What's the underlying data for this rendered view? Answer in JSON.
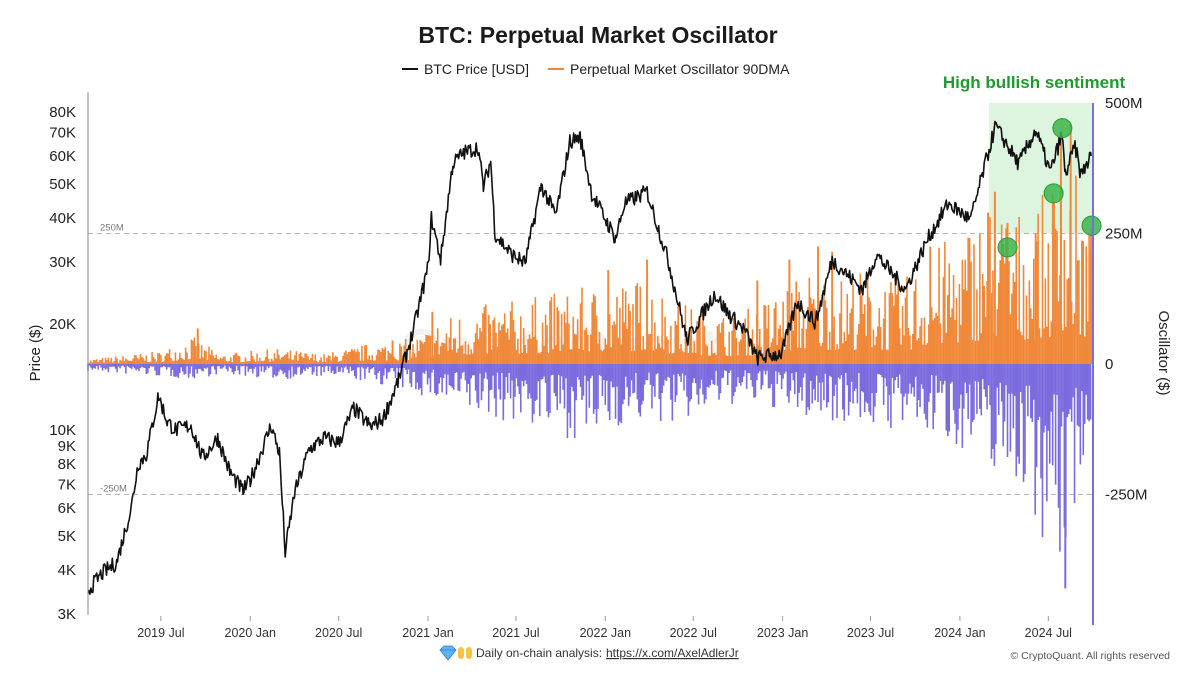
{
  "chart_data": {
    "type": "line",
    "title": "BTC: Perpetual Market Oscillator",
    "legend": [
      {
        "name": "BTC Price [USD]",
        "color": "#111111"
      },
      {
        "name": "Perpetual Market Oscillator 90DMA",
        "color": "#f0883a"
      }
    ],
    "legend_position": "top-center",
    "ylabel_left": "Price ($)",
    "ylabel_right": "Oscillator ($)",
    "y_left_scale": "log",
    "y_left_range": [
      3000,
      90000
    ],
    "y_left_ticks": [
      {
        "v": 80000,
        "label": "80K"
      },
      {
        "v": 70000,
        "label": "70K"
      },
      {
        "v": 60000,
        "label": "60K"
      },
      {
        "v": 50000,
        "label": "50K"
      },
      {
        "v": 40000,
        "label": "40K"
      },
      {
        "v": 30000,
        "label": "30K"
      },
      {
        "v": 20000,
        "label": "20K"
      },
      {
        "v": 10000,
        "label": "10K"
      },
      {
        "v": 9000,
        "label": "9K"
      },
      {
        "v": 8000,
        "label": "8K"
      },
      {
        "v": 7000,
        "label": "7K"
      },
      {
        "v": 6000,
        "label": "6K"
      },
      {
        "v": 5000,
        "label": "5K"
      },
      {
        "v": 4000,
        "label": "4K"
      },
      {
        "v": 3000,
        "label": "3K"
      }
    ],
    "y_right_range": [
      -500,
      500
    ],
    "y_right_unit": "M",
    "y_right_ticks": [
      {
        "v": 500,
        "label": "500M"
      },
      {
        "v": 250,
        "label": "250M"
      },
      {
        "v": 0,
        "label": "0"
      },
      {
        "v": -250,
        "label": "-250M"
      }
    ],
    "reference_lines": [
      {
        "v": 250,
        "label": "250M"
      },
      {
        "v": -250,
        "label": "-250M"
      }
    ],
    "x_range": [
      "2019-02-01",
      "2024-10-01"
    ],
    "x_ticks": [
      {
        "date": "2019-07-01",
        "label": "2019 Jul"
      },
      {
        "date": "2020-01-01",
        "label": "2020 Jan"
      },
      {
        "date": "2020-07-01",
        "label": "2020 Jul"
      },
      {
        "date": "2021-01-01",
        "label": "2021 Jan"
      },
      {
        "date": "2021-07-01",
        "label": "2021 Jul"
      },
      {
        "date": "2022-01-01",
        "label": "2022 Jan"
      },
      {
        "date": "2022-07-01",
        "label": "2022 Jul"
      },
      {
        "date": "2023-01-01",
        "label": "2023 Jan"
      },
      {
        "date": "2023-07-01",
        "label": "2023 Jul"
      },
      {
        "date": "2024-01-01",
        "label": "2024 Jan"
      },
      {
        "date": "2024-07-01",
        "label": "2024 Jul"
      }
    ],
    "grid": false,
    "btc_price": [
      [
        "2019-02-01",
        3500
      ],
      [
        "2019-03-01",
        3900
      ],
      [
        "2019-04-01",
        4200
      ],
      [
        "2019-05-01",
        6000
      ],
      [
        "2019-05-15",
        8000
      ],
      [
        "2019-06-01",
        8500
      ],
      [
        "2019-06-26",
        12500
      ],
      [
        "2019-07-15",
        10500
      ],
      [
        "2019-08-01",
        10000
      ],
      [
        "2019-09-01",
        10300
      ],
      [
        "2019-09-25",
        8300
      ],
      [
        "2019-10-26",
        9500
      ],
      [
        "2019-11-20",
        7600
      ],
      [
        "2019-12-17",
        6700
      ],
      [
        "2020-01-01",
        7200
      ],
      [
        "2020-02-13",
        10300
      ],
      [
        "2020-03-01",
        8600
      ],
      [
        "2020-03-13",
        4500
      ],
      [
        "2020-04-01",
        6600
      ],
      [
        "2020-05-01",
        8800
      ],
      [
        "2020-06-01",
        9500
      ],
      [
        "2020-07-01",
        9200
      ],
      [
        "2020-08-01",
        11500
      ],
      [
        "2020-09-05",
        10200
      ],
      [
        "2020-10-01",
        10800
      ],
      [
        "2020-11-01",
        13800
      ],
      [
        "2020-12-01",
        19000
      ],
      [
        "2021-01-01",
        29000
      ],
      [
        "2021-01-08",
        40000
      ],
      [
        "2021-01-27",
        30500
      ],
      [
        "2021-02-21",
        57000
      ],
      [
        "2021-03-13",
        61000
      ],
      [
        "2021-04-14",
        63500
      ],
      [
        "2021-04-25",
        49000
      ],
      [
        "2021-05-10",
        58000
      ],
      [
        "2021-05-19",
        36000
      ],
      [
        "2021-06-22",
        31500
      ],
      [
        "2021-07-20",
        29800
      ],
      [
        "2021-08-22",
        49500
      ],
      [
        "2021-09-21",
        40700
      ],
      [
        "2021-10-20",
        66000
      ],
      [
        "2021-11-10",
        68000
      ],
      [
        "2021-12-04",
        47000
      ],
      [
        "2022-01-22",
        35000
      ],
      [
        "2022-02-10",
        44000
      ],
      [
        "2022-03-28",
        47500
      ],
      [
        "2022-05-10",
        30500
      ],
      [
        "2022-06-18",
        18000
      ],
      [
        "2022-08-14",
        24400
      ],
      [
        "2022-09-10",
        21500
      ],
      [
        "2022-10-15",
        19200
      ],
      [
        "2022-11-09",
        16000
      ],
      [
        "2022-12-30",
        16500
      ],
      [
        "2023-01-31",
        23100
      ],
      [
        "2023-03-10",
        20200
      ],
      [
        "2023-04-13",
        30400
      ],
      [
        "2023-06-15",
        25000
      ],
      [
        "2023-07-13",
        31500
      ],
      [
        "2023-09-11",
        25000
      ],
      [
        "2023-10-25",
        34500
      ],
      [
        "2023-12-08",
        44000
      ],
      [
        "2024-01-23",
        39500
      ],
      [
        "2024-02-28",
        61000
      ],
      [
        "2024-03-14",
        73000
      ],
      [
        "2024-05-01",
        57000
      ],
      [
        "2024-06-05",
        71000
      ],
      [
        "2024-07-05",
        54000
      ],
      [
        "2024-07-29",
        69000
      ],
      [
        "2024-08-05",
        53000
      ],
      [
        "2024-08-25",
        64000
      ],
      [
        "2024-09-06",
        53000
      ],
      [
        "2024-09-27",
        60000
      ]
    ],
    "oscillator_notes": "90DMA oscillator in millions USD; positive values orange, negative values purple",
    "oscillator_positive_color": "#f0883a",
    "oscillator_negative_color": "#7b6cde",
    "oscillator_envelope": [
      [
        "2019-02-01",
        10,
        -15
      ],
      [
        "2019-07-01",
        25,
        -25
      ],
      [
        "2019-09-01",
        55,
        -30
      ],
      [
        "2019-11-01",
        20,
        -20
      ],
      [
        "2020-03-01",
        30,
        -30
      ],
      [
        "2020-06-01",
        20,
        -25
      ],
      [
        "2020-09-01",
        40,
        -35
      ],
      [
        "2020-12-01",
        50,
        -55
      ],
      [
        "2021-02-01",
        90,
        -80
      ],
      [
        "2021-04-01",
        110,
        -100
      ],
      [
        "2021-06-01",
        120,
        -110
      ],
      [
        "2021-08-01",
        130,
        -120
      ],
      [
        "2021-10-01",
        140,
        -140
      ],
      [
        "2021-12-01",
        150,
        -150
      ],
      [
        "2022-02-01",
        160,
        -120
      ],
      [
        "2022-04-01",
        170,
        -110
      ],
      [
        "2022-06-01",
        120,
        -120
      ],
      [
        "2022-09-01",
        100,
        -80
      ],
      [
        "2022-11-01",
        110,
        -80
      ],
      [
        "2023-01-01",
        150,
        -90
      ],
      [
        "2023-03-01",
        190,
        -110
      ],
      [
        "2023-05-01",
        170,
        -110
      ],
      [
        "2023-07-01",
        190,
        -120
      ],
      [
        "2023-09-01",
        160,
        -130
      ],
      [
        "2023-11-01",
        220,
        -140
      ],
      [
        "2024-01-01",
        260,
        -160
      ],
      [
        "2024-03-01",
        320,
        -200
      ],
      [
        "2024-05-01",
        300,
        -230
      ],
      [
        "2024-07-01",
        330,
        -360
      ],
      [
        "2024-08-01",
        430,
        -420
      ],
      [
        "2024-09-01",
        360,
        -230
      ],
      [
        "2024-09-27",
        250,
        -120
      ]
    ],
    "oscillator_spikes": [
      [
        "2019-09-15",
        68
      ],
      [
        "2020-10-20",
        45
      ],
      [
        "2021-01-10",
        100
      ],
      [
        "2022-03-28",
        200
      ],
      [
        "2022-01-07",
        180
      ],
      [
        "2022-11-10",
        160
      ],
      [
        "2023-01-15",
        200
      ],
      [
        "2023-03-15",
        225
      ],
      [
        "2023-04-13",
        215
      ],
      [
        "2023-11-01",
        225
      ],
      [
        "2024-02-28",
        290
      ],
      [
        "2024-03-13",
        330
      ],
      [
        "2024-04-08",
        270
      ],
      [
        "2024-06-05",
        250
      ],
      [
        "2024-08-05",
        -430
      ],
      [
        "2024-07-27",
        445
      ],
      [
        "2024-08-16",
        460
      ],
      [
        "2024-09-27",
        260
      ]
    ],
    "annotations": [
      {
        "type": "region",
        "label": "High bullish sentiment",
        "x_start": "2024-03-01",
        "x_end": "2024-10-01",
        "y_from": 250,
        "y_to": 500,
        "color": "#1f9a2e"
      },
      {
        "type": "marker",
        "date": "2024-04-08",
        "value": 33000,
        "color": "#3cb44b"
      },
      {
        "type": "marker",
        "date": "2024-07-12",
        "value": 47000,
        "color": "#3cb44b"
      },
      {
        "type": "marker",
        "date": "2024-07-30",
        "value": 72000,
        "color": "#3cb44b"
      },
      {
        "type": "marker",
        "date": "2024-09-28",
        "value": 265,
        "color": "#3cb44b"
      }
    ],
    "watermark": "CryptoQuant"
  },
  "footer": {
    "icons": [
      "gem-icon",
      "raised-hands-icon"
    ],
    "text": "Daily on-chain analysis: ",
    "link": "https://x.com/AxelAdlerJr",
    "copyright": "© CryptoQuant. All rights reserved"
  }
}
